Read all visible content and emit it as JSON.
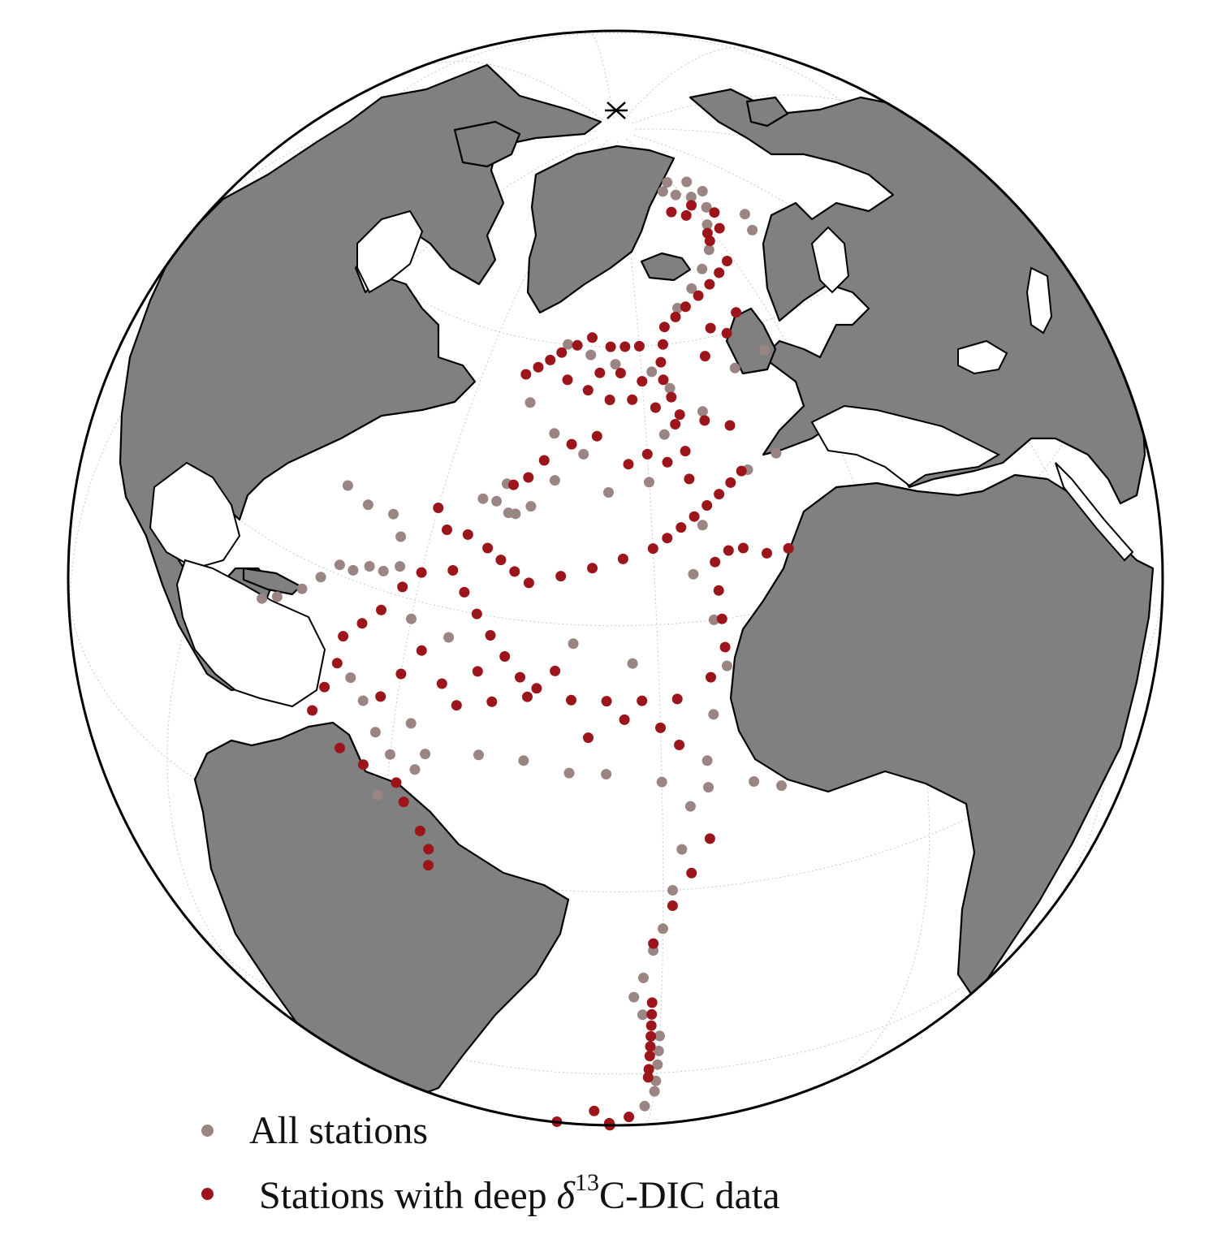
{
  "colors": {
    "land": "#808080",
    "land_edge": "#000000",
    "ocean": "#ffffff",
    "graticule": "#c8c8c8",
    "all_stations": "#9b8583",
    "deep_stations": "#9b151a"
  },
  "legend": {
    "all_label": "All stations",
    "deep_prefix": "Stations with deep",
    "deep_symbol": "δ",
    "deep_sup": "13",
    "deep_suffix": "C-DIC data"
  },
  "markers": {
    "pole_icon": "x-cross-icon"
  },
  "projection": {
    "type": "orthographic",
    "center_lon": -35,
    "center_lat": 35,
    "graticule": true
  },
  "stations": {
    "all": [
      [
        -54,
        42
      ],
      [
        -52,
        42
      ],
      [
        -50,
        41
      ],
      [
        -49,
        41
      ],
      [
        -51,
        44
      ],
      [
        -47,
        42
      ],
      [
        -44,
        45
      ],
      [
        -30,
        45
      ],
      [
        -15,
        45
      ],
      [
        -10,
        46
      ],
      [
        -20,
        52
      ],
      [
        -25,
        55
      ],
      [
        -28,
        57
      ],
      [
        -35,
        58
      ],
      [
        -40,
        59
      ],
      [
        -45,
        60
      ],
      [
        -20,
        64
      ],
      [
        -15,
        66
      ],
      [
        -10,
        68
      ],
      [
        -5,
        70
      ],
      [
        0,
        73
      ],
      [
        5,
        75
      ],
      [
        10,
        77
      ],
      [
        3,
        77
      ],
      [
        -3,
        78
      ],
      [
        -8,
        79
      ],
      [
        -2,
        80
      ],
      [
        8,
        79
      ],
      [
        12,
        70
      ],
      [
        15,
        72
      ],
      [
        -23,
        40
      ],
      [
        -25,
        35
      ],
      [
        -23,
        30
      ],
      [
        -22,
        25
      ],
      [
        -24,
        20
      ],
      [
        -25,
        15
      ],
      [
        -27,
        10
      ],
      [
        -28,
        5
      ],
      [
        -29,
        0
      ],
      [
        -30,
        -5
      ],
      [
        -31,
        -8
      ],
      [
        -32,
        -12
      ],
      [
        -33,
        -15
      ],
      [
        -32,
        -18
      ],
      [
        -30,
        -22
      ],
      [
        -30,
        -25
      ],
      [
        -30,
        -28
      ],
      [
        -30,
        -32
      ],
      [
        -30,
        -35
      ],
      [
        -31,
        -40
      ],
      [
        -65,
        32
      ],
      [
        -67,
        32
      ],
      [
        -69,
        31
      ],
      [
        -71,
        31
      ],
      [
        -73,
        29
      ],
      [
        -75,
        27
      ],
      [
        -78,
        25
      ],
      [
        -80,
        24
      ],
      [
        -60,
        28
      ],
      [
        -55,
        27
      ],
      [
        -66,
        20
      ],
      [
        -64,
        18
      ],
      [
        -62,
        15
      ],
      [
        -60,
        13
      ],
      [
        -56,
        14
      ],
      [
        -50,
        15
      ],
      [
        -45,
        15
      ],
      [
        -40,
        14
      ],
      [
        -36,
        14
      ],
      [
        -30,
        13
      ],
      [
        -25,
        12
      ],
      [
        -20,
        12
      ],
      [
        -17,
        11
      ],
      [
        -64,
        36
      ],
      [
        -63,
        33
      ],
      [
        -66,
        38
      ],
      [
        -70,
        38
      ],
      [
        -74,
        39
      ],
      [
        -58,
        17
      ],
      [
        -57,
        12
      ],
      [
        -61,
        8
      ],
      [
        -40,
        48
      ],
      [
        -36,
        44
      ],
      [
        -45,
        50
      ],
      [
        -50,
        53
      ],
      [
        -27,
        50
      ],
      [
        -12,
        56
      ],
      [
        -5,
        57
      ],
      [
        -40,
        28
      ],
      [
        -33,
        26
      ]
    ],
    "deep": [
      [
        -30,
        38
      ],
      [
        -28,
        39
      ],
      [
        -26,
        40
      ],
      [
        -24,
        41
      ],
      [
        -22,
        42
      ],
      [
        -20,
        43
      ],
      [
        -18,
        44
      ],
      [
        -16,
        45
      ],
      [
        -34,
        37
      ],
      [
        -38,
        36
      ],
      [
        -42,
        35
      ],
      [
        -46,
        34
      ],
      [
        -48,
        35
      ],
      [
        -50,
        36
      ],
      [
        -52,
        37
      ],
      [
        -55,
        38
      ],
      [
        -58,
        38
      ],
      [
        -60,
        40
      ],
      [
        -56,
        34
      ],
      [
        -54,
        32
      ],
      [
        -52,
        30
      ],
      [
        -50,
        28
      ],
      [
        -48,
        26
      ],
      [
        -46,
        24
      ],
      [
        -44,
        23
      ],
      [
        -40,
        22
      ],
      [
        -36,
        22
      ],
      [
        -32,
        22
      ],
      [
        -28,
        22
      ],
      [
        -24,
        24
      ],
      [
        -22,
        27
      ],
      [
        -22,
        30
      ],
      [
        -22,
        33
      ],
      [
        -22,
        36
      ],
      [
        -20,
        37
      ],
      [
        -18,
        37
      ],
      [
        -15,
        36
      ],
      [
        -12,
        36
      ],
      [
        -24,
        45
      ],
      [
        -24,
        48
      ],
      [
        -25,
        51
      ],
      [
        -25,
        54
      ],
      [
        -26,
        56
      ],
      [
        -26,
        58
      ],
      [
        -25,
        60
      ],
      [
        -24,
        62
      ],
      [
        -21,
        63
      ],
      [
        -18,
        64
      ],
      [
        -14,
        65
      ],
      [
        -10,
        66
      ],
      [
        -6,
        67
      ],
      [
        -2,
        68
      ],
      [
        -30,
        60
      ],
      [
        -33,
        60
      ],
      [
        -36,
        60
      ],
      [
        -40,
        61
      ],
      [
        -43,
        60
      ],
      [
        -46,
        59
      ],
      [
        -48,
        58
      ],
      [
        -50,
        57
      ],
      [
        -52,
        56
      ],
      [
        -44,
        56
      ],
      [
        -40,
        55
      ],
      [
        -36,
        54
      ],
      [
        -32,
        54
      ],
      [
        -28,
        53
      ],
      [
        -24,
        52
      ],
      [
        -20,
        51
      ],
      [
        -16,
        50
      ],
      [
        -38,
        50
      ],
      [
        -42,
        49
      ],
      [
        -46,
        47
      ],
      [
        -48,
        45
      ],
      [
        -50,
        44
      ],
      [
        -33,
        47
      ],
      [
        -30,
        48
      ],
      [
        -27,
        47
      ],
      [
        -60,
        33
      ],
      [
        -62,
        31
      ],
      [
        -64,
        28
      ],
      [
        -66,
        26
      ],
      [
        -68,
        24
      ],
      [
        -68,
        21
      ],
      [
        -69,
        18
      ],
      [
        -70,
        15
      ],
      [
        -66,
        12
      ],
      [
        -63,
        11
      ],
      [
        -59,
        10
      ],
      [
        -58,
        8
      ],
      [
        -56,
        5
      ],
      [
        -55,
        3
      ],
      [
        -55,
        1
      ],
      [
        -38,
        18
      ],
      [
        -34,
        20
      ],
      [
        -30,
        19
      ],
      [
        -28,
        17
      ],
      [
        -25,
        6
      ],
      [
        -27,
        2
      ],
      [
        -29,
        -2
      ],
      [
        -31,
        -7
      ],
      [
        -31,
        -16
      ],
      [
        -31,
        -18
      ],
      [
        -31,
        -20
      ],
      [
        -31,
        -22
      ],
      [
        -31,
        -24
      ],
      [
        -31,
        -26
      ],
      [
        -31,
        -29
      ],
      [
        -31,
        -31
      ],
      [
        -38,
        -42
      ],
      [
        -45,
        -52
      ],
      [
        -36,
        -50
      ],
      [
        -36,
        -52
      ],
      [
        -36,
        -54
      ],
      [
        -33,
        -45
      ],
      [
        -5,
        75
      ],
      [
        0,
        76
      ],
      [
        3,
        72
      ],
      [
        -2,
        72
      ],
      [
        6,
        74
      ],
      [
        -10,
        76
      ],
      [
        -3,
        71
      ],
      [
        -14,
        61
      ],
      [
        -17,
        58
      ],
      [
        -11,
        60
      ],
      [
        -7,
        62
      ],
      [
        -30,
        56
      ],
      [
        -34,
        57
      ],
      [
        -38,
        57
      ],
      [
        -55,
        22
      ],
      [
        -53,
        20
      ],
      [
        -51,
        24
      ],
      [
        -49,
        21
      ],
      [
        -45,
        22
      ],
      [
        -42,
        25
      ],
      [
        -58,
        25
      ],
      [
        -60,
        22
      ],
      [
        -62,
        19
      ]
    ]
  }
}
